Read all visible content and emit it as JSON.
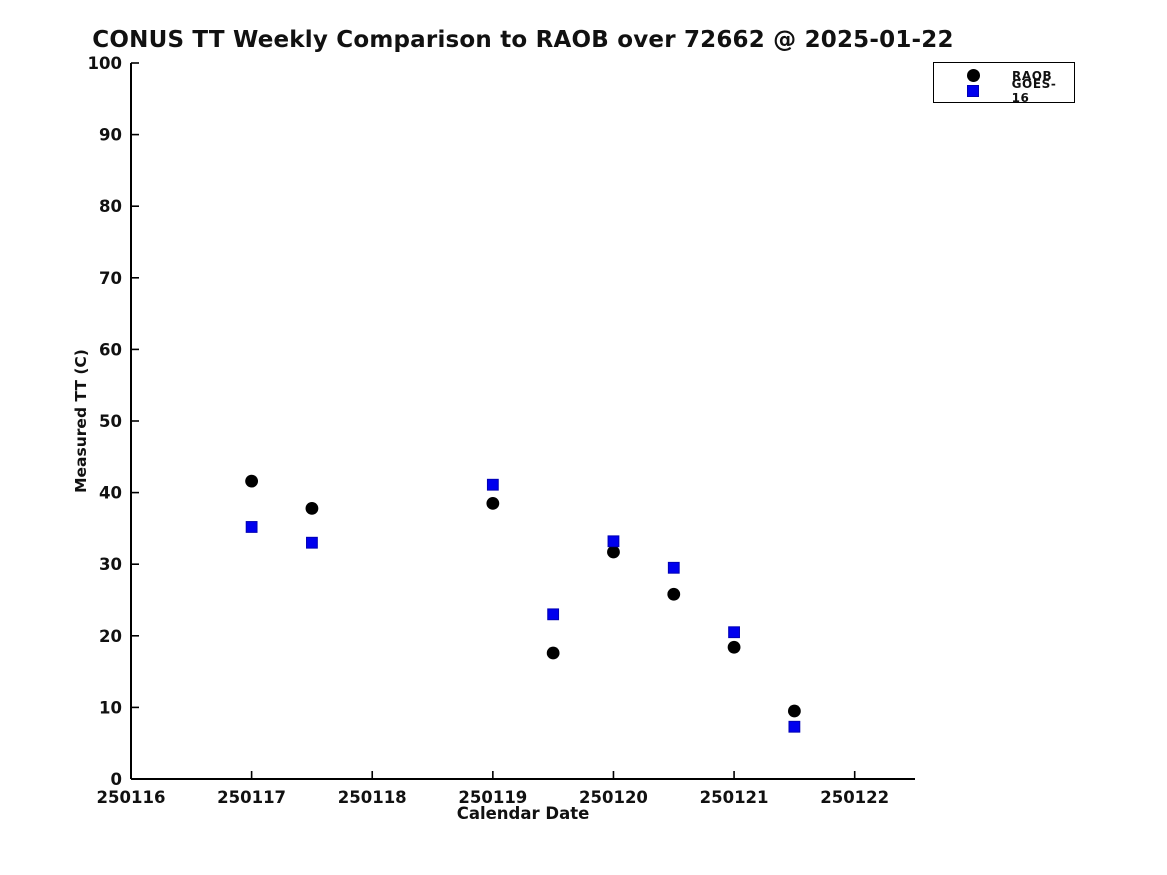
{
  "chart_data": {
    "type": "scatter",
    "title": "CONUS TT Weekly Comparison to RAOB over 72662 @ 2025-01-22",
    "xlabel": "Calendar Date",
    "ylabel": "Measured TT (C)",
    "xlim": [
      250116,
      250122.5
    ],
    "ylim": [
      0,
      100
    ],
    "xticks": [
      250116,
      250117,
      250118,
      250119,
      250120,
      250121,
      250122
    ],
    "xtick_labels": [
      "250116",
      "250117",
      "250118",
      "250119",
      "250120",
      "250121",
      "250122"
    ],
    "yticks": [
      0,
      10,
      20,
      30,
      40,
      50,
      60,
      70,
      80,
      90,
      100
    ],
    "ytick_labels": [
      "0",
      "10",
      "20",
      "30",
      "40",
      "50",
      "60",
      "70",
      "80",
      "90",
      "100"
    ],
    "grid": false,
    "legend_position": "outside-top-right",
    "axis_color": "#000000",
    "text_color": "#111111",
    "series": [
      {
        "name": "RAOB",
        "marker": "circle",
        "color": "#000000",
        "x": [
          250117.0,
          250117.5,
          250119.0,
          250119.5,
          250120.0,
          250120.5,
          250121.0,
          250121.5
        ],
        "y": [
          41.6,
          37.8,
          38.5,
          17.6,
          31.7,
          25.8,
          18.4,
          9.5
        ]
      },
      {
        "name": "GOES-16",
        "marker": "square",
        "color": "#0000ee",
        "edge_color": "#0000b4",
        "x": [
          250117.0,
          250117.5,
          250119.0,
          250119.5,
          250120.0,
          250120.5,
          250121.0,
          250121.5
        ],
        "y": [
          35.2,
          33.0,
          41.1,
          23.0,
          33.2,
          29.5,
          20.5,
          7.3
        ]
      }
    ]
  }
}
